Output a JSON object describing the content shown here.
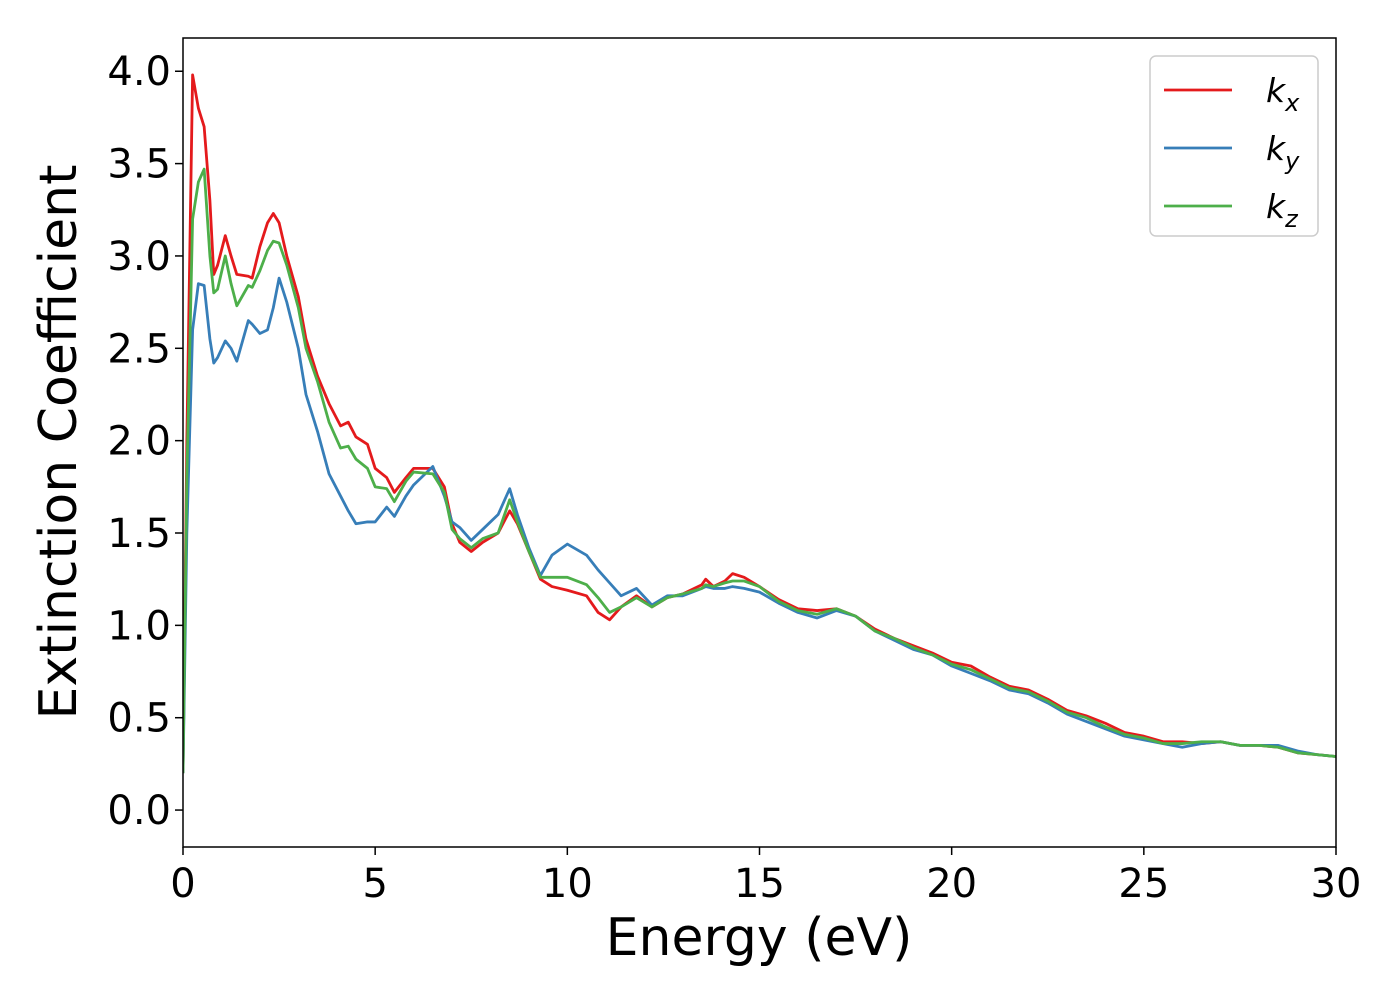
{
  "chart_data": {
    "type": "line",
    "xlabel": "Energy (eV)",
    "ylabel": "Extinction Coefficient",
    "xlim": [
      0,
      30
    ],
    "ylim": [
      -0.2,
      4.18
    ],
    "xticks": [
      0,
      5,
      10,
      15,
      20,
      25,
      30
    ],
    "yticks": [
      {
        "value": 0,
        "label": "0.0"
      },
      0.5,
      {
        "value": 1,
        "label": "1.0"
      },
      1.5,
      {
        "value": 2,
        "label": "2.0"
      },
      2.5,
      {
        "value": 3,
        "label": "3.0"
      },
      3.5,
      {
        "value": 4,
        "label": "4.0"
      }
    ],
    "legend": "upper right",
    "grid": false,
    "x": [
      0,
      0.1,
      0.25,
      0.4,
      0.55,
      0.7,
      0.8,
      0.9,
      1.1,
      1.25,
      1.4,
      1.7,
      1.8,
      2.0,
      2.2,
      2.35,
      2.5,
      2.7,
      3.0,
      3.2,
      3.5,
      3.8,
      4.1,
      4.3,
      4.5,
      4.8,
      5.0,
      5.3,
      5.5,
      5.8,
      6.0,
      6.5,
      6.8,
      7.0,
      7.2,
      7.5,
      7.8,
      8.2,
      8.5,
      8.7,
      9.0,
      9.3,
      9.6,
      10.0,
      10.5,
      10.8,
      11.1,
      11.4,
      11.8,
      12.2,
      12.6,
      13.0,
      13.5,
      13.6,
      13.8,
      14.1,
      14.3,
      14.6,
      15.0,
      15.5,
      16.0,
      16.5,
      17.0,
      17.5,
      18.0,
      18.5,
      19.0,
      19.5,
      20.0,
      20.5,
      21.0,
      21.5,
      22.0,
      22.5,
      23.0,
      23.5,
      24.0,
      24.5,
      25.0,
      25.5,
      26.0,
      26.5,
      27.0,
      27.5,
      28.0,
      28.5,
      29.0,
      29.5,
      30.0
    ],
    "series": [
      {
        "name": "kx",
        "color": "#e41a1c",
        "values": [
          0.2,
          2.0,
          3.98,
          3.8,
          3.7,
          3.3,
          2.9,
          2.95,
          3.11,
          3.0,
          2.9,
          2.89,
          2.88,
          3.05,
          3.18,
          3.23,
          3.18,
          3.0,
          2.78,
          2.55,
          2.35,
          2.2,
          2.08,
          2.1,
          2.02,
          1.98,
          1.85,
          1.8,
          1.72,
          1.8,
          1.85,
          1.85,
          1.75,
          1.55,
          1.45,
          1.4,
          1.45,
          1.5,
          1.62,
          1.55,
          1.4,
          1.25,
          1.21,
          1.19,
          1.16,
          1.07,
          1.03,
          1.1,
          1.16,
          1.1,
          1.15,
          1.17,
          1.22,
          1.25,
          1.21,
          1.24,
          1.28,
          1.26,
          1.21,
          1.14,
          1.09,
          1.08,
          1.09,
          1.05,
          0.98,
          0.93,
          0.89,
          0.85,
          0.8,
          0.78,
          0.72,
          0.67,
          0.65,
          0.6,
          0.54,
          0.51,
          0.47,
          0.42,
          0.4,
          0.37,
          0.37,
          0.36,
          0.37,
          0.35,
          0.35,
          0.34,
          0.31,
          0.3,
          0.29
        ]
      },
      {
        "name": "ky",
        "color": "#377eb8",
        "values": [
          0.2,
          1.5,
          2.6,
          2.85,
          2.84,
          2.55,
          2.42,
          2.45,
          2.54,
          2.5,
          2.43,
          2.65,
          2.63,
          2.58,
          2.6,
          2.72,
          2.88,
          2.75,
          2.5,
          2.25,
          2.05,
          1.82,
          1.7,
          1.62,
          1.55,
          1.56,
          1.56,
          1.64,
          1.59,
          1.7,
          1.76,
          1.86,
          1.7,
          1.56,
          1.53,
          1.46,
          1.52,
          1.6,
          1.74,
          1.6,
          1.42,
          1.27,
          1.38,
          1.44,
          1.38,
          1.3,
          1.23,
          1.16,
          1.2,
          1.11,
          1.16,
          1.16,
          1.2,
          1.21,
          1.2,
          1.2,
          1.21,
          1.2,
          1.18,
          1.12,
          1.07,
          1.04,
          1.08,
          1.05,
          0.97,
          0.92,
          0.87,
          0.84,
          0.78,
          0.74,
          0.7,
          0.65,
          0.63,
          0.58,
          0.52,
          0.48,
          0.44,
          0.4,
          0.38,
          0.36,
          0.34,
          0.36,
          0.37,
          0.35,
          0.35,
          0.35,
          0.32,
          0.3,
          0.29
        ]
      },
      {
        "name": "kz",
        "color": "#4daf4a",
        "values": [
          0.2,
          1.8,
          3.2,
          3.4,
          3.47,
          3.0,
          2.8,
          2.82,
          3.0,
          2.85,
          2.73,
          2.84,
          2.83,
          2.92,
          3.03,
          3.08,
          3.07,
          2.95,
          2.72,
          2.5,
          2.32,
          2.1,
          1.96,
          1.97,
          1.9,
          1.85,
          1.75,
          1.74,
          1.67,
          1.78,
          1.83,
          1.82,
          1.72,
          1.52,
          1.47,
          1.42,
          1.47,
          1.5,
          1.68,
          1.56,
          1.4,
          1.26,
          1.26,
          1.26,
          1.22,
          1.15,
          1.07,
          1.1,
          1.15,
          1.1,
          1.15,
          1.17,
          1.2,
          1.22,
          1.21,
          1.23,
          1.24,
          1.24,
          1.21,
          1.13,
          1.08,
          1.06,
          1.09,
          1.05,
          0.97,
          0.93,
          0.88,
          0.84,
          0.79,
          0.76,
          0.71,
          0.66,
          0.64,
          0.59,
          0.53,
          0.5,
          0.45,
          0.41,
          0.39,
          0.36,
          0.36,
          0.37,
          0.37,
          0.35,
          0.35,
          0.34,
          0.31,
          0.3,
          0.29
        ]
      }
    ]
  }
}
